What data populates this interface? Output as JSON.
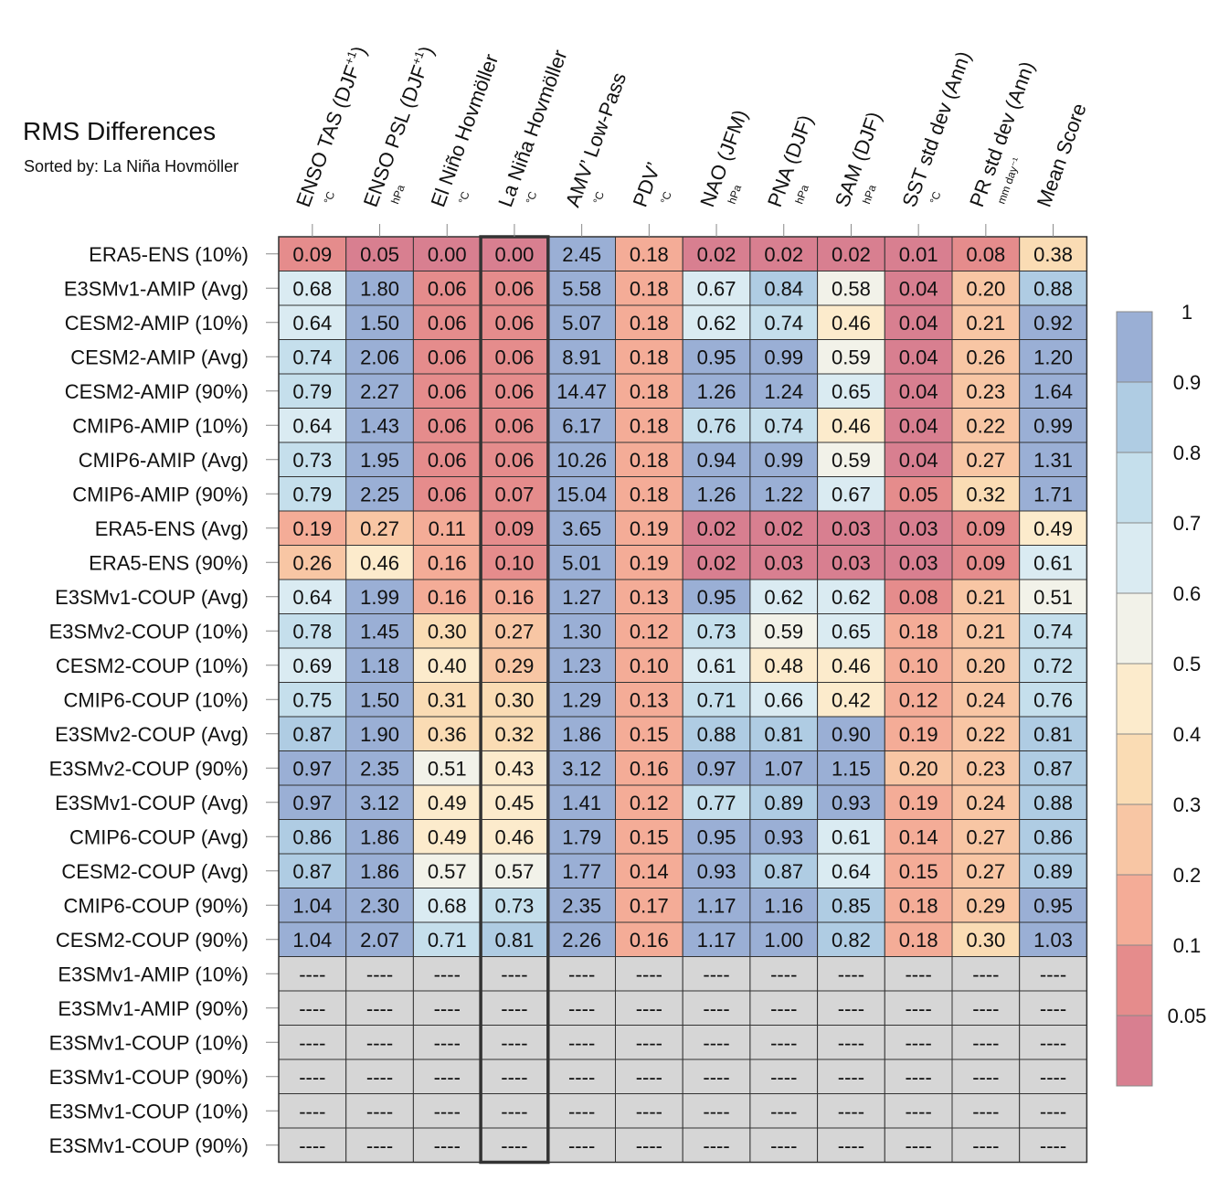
{
  "title": "RMS Differences",
  "subtitle": "Sorted by: La Niña Hovmöller",
  "missing_text": "----",
  "colors": {
    "cell_border": "#333333",
    "missing_fill": "#d6d6d6",
    "highlight_border": "#333333",
    "colorbar_bins": [
      "#d87f90",
      "#e58c8c",
      "#f4ac97",
      "#f8c6a4",
      "#fadcb4",
      "#fcebcc",
      "#f2f2e9",
      "#daebf2",
      "#c5dfec",
      "#afcce3",
      "#9aafd5"
    ]
  },
  "colorbar": {
    "levels": [
      0.05,
      0.1,
      0.2,
      0.3,
      0.4,
      0.5,
      0.6,
      0.7,
      0.8,
      0.9,
      1
    ],
    "labels": [
      "0.05",
      "0.1",
      "0.2",
      "0.3",
      "0.4",
      "0.5",
      "0.6",
      "0.7",
      "0.8",
      "0.9",
      "1"
    ]
  },
  "chart_data": {
    "type": "heatmap",
    "title": "RMS Differences",
    "subtitle": "Sorted by: La Niña Hovmöller",
    "sorted_by": "La Niña Hovmöller",
    "columns": [
      {
        "label": "ENSO TAS (DJF",
        "sup": "+1",
        "tail": ")",
        "unit": "°C"
      },
      {
        "label": "ENSO PSL (DJF",
        "sup": "+1",
        "tail": ")",
        "unit": "hPa"
      },
      {
        "label": "El Niño Hovmöller",
        "sup": "",
        "tail": "",
        "unit": "°C"
      },
      {
        "label": "La Niña Hovmöller",
        "sup": "",
        "tail": "",
        "unit": "°C"
      },
      {
        "label": "AMV’ Low-Pass",
        "sup": "",
        "tail": "",
        "unit": "°C"
      },
      {
        "label": "PDV’",
        "sup": "",
        "tail": "",
        "unit": "°C"
      },
      {
        "label": "NAO (JFM)",
        "sup": "",
        "tail": "",
        "unit": "hPa"
      },
      {
        "label": "PNA (DJF)",
        "sup": "",
        "tail": "",
        "unit": "hPa"
      },
      {
        "label": "SAM (DJF)",
        "sup": "",
        "tail": "",
        "unit": "hPa"
      },
      {
        "label": "SST std dev (Ann)",
        "sup": "",
        "tail": "",
        "unit": "°C"
      },
      {
        "label": "PR std dev (Ann)",
        "sup": "",
        "tail": "",
        "unit": "mm day⁻¹"
      },
      {
        "label": "Mean Score",
        "sup": "",
        "tail": "",
        "unit": ""
      }
    ],
    "highlight_column": "La Niña Hovmöller",
    "rows": [
      {
        "name": "ERA5-ENS (10%)",
        "values": [
          "0.09",
          "0.05",
          "0.00",
          "0.00",
          "2.45",
          "0.18",
          "0.02",
          "0.02",
          "0.02",
          "0.01",
          "0.08",
          "0.38"
        ],
        "colors": [
          1,
          0,
          0,
          0,
          10,
          2,
          0,
          0,
          0,
          0,
          1,
          4
        ]
      },
      {
        "name": "E3SMv1-AMIP (Avg)",
        "values": [
          "0.68",
          "1.80",
          "0.06",
          "0.06",
          "5.58",
          "0.18",
          "0.67",
          "0.84",
          "0.58",
          "0.04",
          "0.20",
          "0.88"
        ],
        "colors": [
          7,
          10,
          1,
          1,
          10,
          2,
          7,
          9,
          6,
          0,
          3,
          9
        ]
      },
      {
        "name": "CESM2-AMIP (10%)",
        "values": [
          "0.64",
          "1.50",
          "0.06",
          "0.06",
          "5.07",
          "0.18",
          "0.62",
          "0.74",
          "0.46",
          "0.04",
          "0.21",
          "0.92"
        ],
        "colors": [
          7,
          10,
          1,
          1,
          10,
          2,
          7,
          8,
          5,
          0,
          3,
          10
        ]
      },
      {
        "name": "CESM2-AMIP (Avg)",
        "values": [
          "0.74",
          "2.06",
          "0.06",
          "0.06",
          "8.91",
          "0.18",
          "0.95",
          "0.99",
          "0.59",
          "0.04",
          "0.26",
          "1.20"
        ],
        "colors": [
          8,
          10,
          1,
          1,
          10,
          2,
          10,
          10,
          6,
          0,
          3,
          10
        ]
      },
      {
        "name": "CESM2-AMIP (90%)",
        "values": [
          "0.79",
          "2.27",
          "0.06",
          "0.06",
          "14.47",
          "0.18",
          "1.26",
          "1.24",
          "0.65",
          "0.04",
          "0.23",
          "1.64"
        ],
        "colors": [
          8,
          10,
          1,
          1,
          10,
          2,
          10,
          10,
          7,
          0,
          3,
          10
        ]
      },
      {
        "name": "CMIP6-AMIP (10%)",
        "values": [
          "0.64",
          "1.43",
          "0.06",
          "0.06",
          "6.17",
          "0.18",
          "0.76",
          "0.74",
          "0.46",
          "0.04",
          "0.22",
          "0.99"
        ],
        "colors": [
          7,
          10,
          1,
          1,
          10,
          2,
          8,
          8,
          5,
          0,
          3,
          10
        ]
      },
      {
        "name": "CMIP6-AMIP (Avg)",
        "values": [
          "0.73",
          "1.95",
          "0.06",
          "0.06",
          "10.26",
          "0.18",
          "0.94",
          "0.99",
          "0.59",
          "0.04",
          "0.27",
          "1.31"
        ],
        "colors": [
          8,
          10,
          1,
          1,
          10,
          2,
          10,
          10,
          6,
          0,
          3,
          10
        ]
      },
      {
        "name": "CMIP6-AMIP (90%)",
        "values": [
          "0.79",
          "2.25",
          "0.06",
          "0.07",
          "15.04",
          "0.18",
          "1.26",
          "1.22",
          "0.67",
          "0.05",
          "0.32",
          "1.71"
        ],
        "colors": [
          8,
          10,
          1,
          1,
          10,
          2,
          10,
          10,
          7,
          1,
          4,
          10
        ]
      },
      {
        "name": "ERA5-ENS (Avg)",
        "values": [
          "0.19",
          "0.27",
          "0.11",
          "0.09",
          "3.65",
          "0.19",
          "0.02",
          "0.02",
          "0.03",
          "0.03",
          "0.09",
          "0.49"
        ],
        "colors": [
          2,
          3,
          2,
          1,
          10,
          2,
          0,
          0,
          0,
          0,
          1,
          5
        ]
      },
      {
        "name": "ERA5-ENS (90%)",
        "values": [
          "0.26",
          "0.46",
          "0.16",
          "0.10",
          "5.01",
          "0.19",
          "0.02",
          "0.03",
          "0.03",
          "0.03",
          "0.09",
          "0.61"
        ],
        "colors": [
          3,
          5,
          2,
          1,
          10,
          2,
          0,
          0,
          0,
          0,
          1,
          7
        ]
      },
      {
        "name": "E3SMv1-COUP (Avg)",
        "values": [
          "0.64",
          "1.99",
          "0.16",
          "0.16",
          "1.27",
          "0.13",
          "0.95",
          "0.62",
          "0.62",
          "0.08",
          "0.21",
          "0.51"
        ],
        "colors": [
          7,
          10,
          2,
          2,
          10,
          2,
          10,
          7,
          7,
          1,
          3,
          6
        ]
      },
      {
        "name": "E3SMv2-COUP (10%)",
        "values": [
          "0.78",
          "1.45",
          "0.30",
          "0.27",
          "1.30",
          "0.12",
          "0.73",
          "0.59",
          "0.65",
          "0.18",
          "0.21",
          "0.74"
        ],
        "colors": [
          8,
          10,
          4,
          3,
          10,
          2,
          8,
          6,
          7,
          2,
          3,
          8
        ]
      },
      {
        "name": "CESM2-COUP (10%)",
        "values": [
          "0.69",
          "1.18",
          "0.40",
          "0.29",
          "1.23",
          "0.10",
          "0.61",
          "0.48",
          "0.46",
          "0.10",
          "0.20",
          "0.72"
        ],
        "colors": [
          7,
          10,
          5,
          3,
          10,
          2,
          7,
          5,
          5,
          2,
          3,
          8
        ]
      },
      {
        "name": "CMIP6-COUP (10%)",
        "values": [
          "0.75",
          "1.50",
          "0.31",
          "0.30",
          "1.29",
          "0.13",
          "0.71",
          "0.66",
          "0.42",
          "0.12",
          "0.24",
          "0.76"
        ],
        "colors": [
          8,
          10,
          4,
          4,
          10,
          2,
          8,
          7,
          5,
          2,
          3,
          8
        ]
      },
      {
        "name": "E3SMv2-COUP (Avg)",
        "values": [
          "0.87",
          "1.90",
          "0.36",
          "0.32",
          "1.86",
          "0.15",
          "0.88",
          "0.81",
          "0.90",
          "0.19",
          "0.22",
          "0.81"
        ],
        "colors": [
          9,
          10,
          4,
          4,
          10,
          2,
          9,
          9,
          10,
          2,
          3,
          9
        ]
      },
      {
        "name": "E3SMv2-COUP (90%)",
        "values": [
          "0.97",
          "2.35",
          "0.51",
          "0.43",
          "3.12",
          "0.16",
          "0.97",
          "1.07",
          "1.15",
          "0.20",
          "0.23",
          "0.87"
        ],
        "colors": [
          10,
          10,
          6,
          5,
          10,
          2,
          10,
          10,
          10,
          3,
          3,
          9
        ]
      },
      {
        "name": "E3SMv1-COUP (Avg)",
        "values": [
          "0.97",
          "3.12",
          "0.49",
          "0.45",
          "1.41",
          "0.12",
          "0.77",
          "0.89",
          "0.93",
          "0.19",
          "0.24",
          "0.88"
        ],
        "colors": [
          10,
          10,
          5,
          5,
          10,
          2,
          8,
          9,
          10,
          2,
          3,
          9
        ]
      },
      {
        "name": "CMIP6-COUP (Avg)",
        "values": [
          "0.86",
          "1.86",
          "0.49",
          "0.46",
          "1.79",
          "0.15",
          "0.95",
          "0.93",
          "0.61",
          "0.14",
          "0.27",
          "0.86"
        ],
        "colors": [
          9,
          10,
          5,
          5,
          10,
          2,
          10,
          10,
          7,
          2,
          3,
          9
        ]
      },
      {
        "name": "CESM2-COUP (Avg)",
        "values": [
          "0.87",
          "1.86",
          "0.57",
          "0.57",
          "1.77",
          "0.14",
          "0.93",
          "0.87",
          "0.64",
          "0.15",
          "0.27",
          "0.89"
        ],
        "colors": [
          9,
          10,
          6,
          6,
          10,
          2,
          10,
          9,
          7,
          2,
          3,
          9
        ]
      },
      {
        "name": "CMIP6-COUP (90%)",
        "values": [
          "1.04",
          "2.30",
          "0.68",
          "0.73",
          "2.35",
          "0.17",
          "1.17",
          "1.16",
          "0.85",
          "0.18",
          "0.29",
          "0.95"
        ],
        "colors": [
          10,
          10,
          7,
          8,
          10,
          2,
          10,
          10,
          9,
          2,
          3,
          10
        ]
      },
      {
        "name": "CESM2-COUP (90%)",
        "values": [
          "1.04",
          "2.07",
          "0.71",
          "0.81",
          "2.26",
          "0.16",
          "1.17",
          "1.00",
          "0.82",
          "0.18",
          "0.30",
          "1.03"
        ],
        "colors": [
          10,
          10,
          8,
          9,
          10,
          2,
          10,
          10,
          9,
          2,
          4,
          10
        ]
      },
      {
        "name": "E3SMv1-AMIP (10%)",
        "values": null,
        "colors": null
      },
      {
        "name": "E3SMv1-AMIP (90%)",
        "values": null,
        "colors": null
      },
      {
        "name": "E3SMv1-COUP (10%)",
        "values": null,
        "colors": null
      },
      {
        "name": "E3SMv1-COUP (90%)",
        "values": null,
        "colors": null
      },
      {
        "name": "E3SMv1-COUP (10%)",
        "values": null,
        "colors": null
      },
      {
        "name": "E3SMv1-COUP (90%)",
        "values": null,
        "colors": null
      }
    ]
  }
}
